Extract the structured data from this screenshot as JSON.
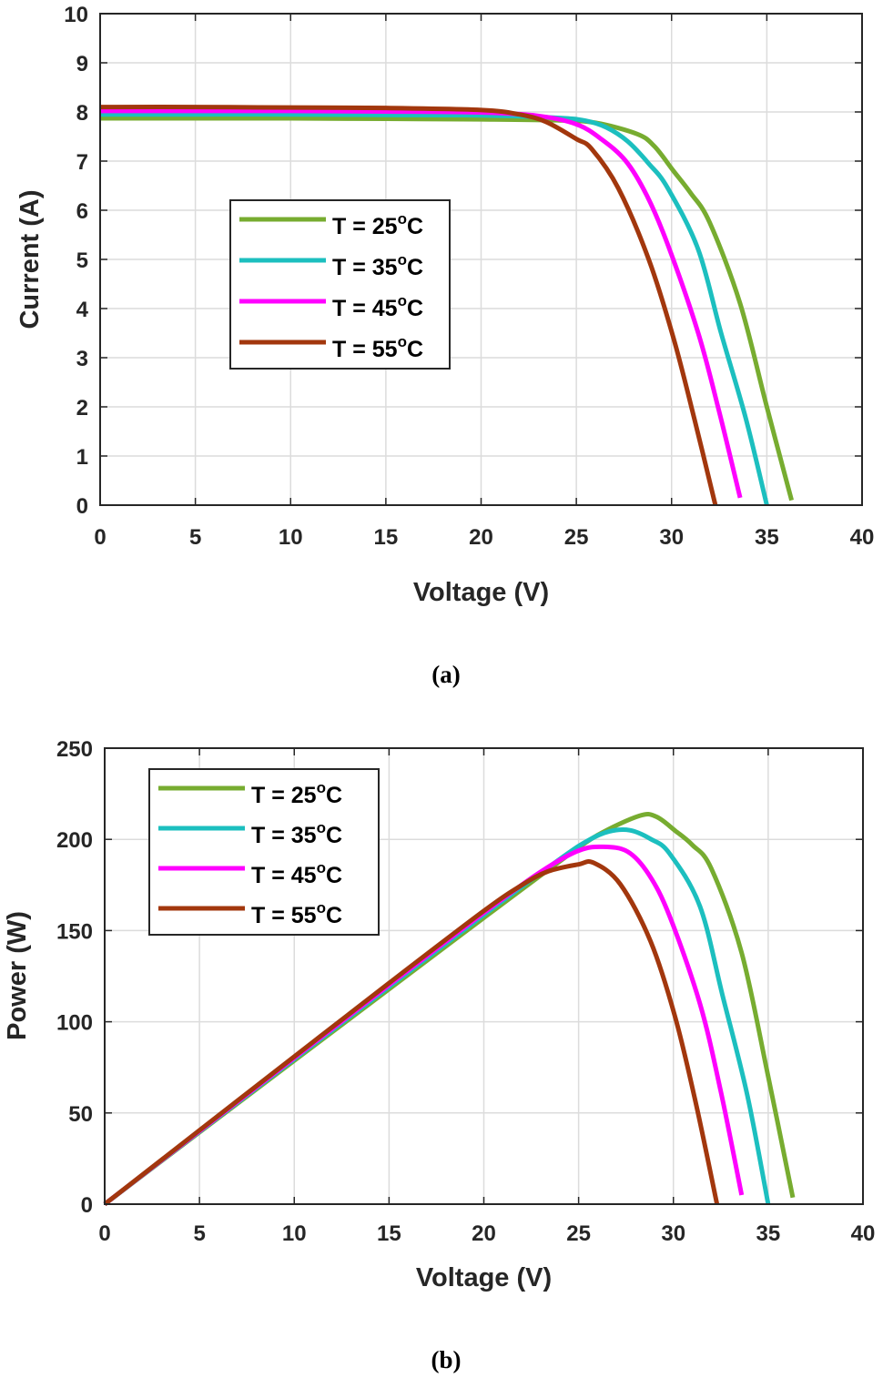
{
  "chart_data": [
    {
      "type": "line",
      "caption": "(a)",
      "xlabel": "Voltage (V)",
      "ylabel": "Current (A)",
      "xlim": [
        0,
        40
      ],
      "ylim": [
        0,
        10
      ],
      "xticks": [
        0,
        5,
        10,
        15,
        20,
        25,
        30,
        35,
        40
      ],
      "yticks": [
        0,
        1,
        2,
        3,
        4,
        5,
        6,
        7,
        8,
        9,
        10
      ],
      "grid": true,
      "legend_placement": "center-left",
      "series": [
        {
          "name": "T = 25oC",
          "label_main": "T = 25",
          "label_sup": "o",
          "label_end": "C",
          "color": "#77AC30",
          "x": [
            0,
            5,
            10,
            15,
            20,
            24,
            26,
            28.2,
            29.1,
            30.1,
            31,
            32,
            33.6,
            35,
            36.3
          ],
          "y": [
            7.87,
            7.87,
            7.87,
            7.86,
            7.85,
            7.83,
            7.78,
            7.55,
            7.3,
            6.8,
            6.35,
            5.75,
            4.1,
            2.0,
            0.1
          ]
        },
        {
          "name": "T = 35oC",
          "label_main": "T = 35",
          "label_sup": "o",
          "label_end": "C",
          "color": "#1CBFBF",
          "x": [
            0,
            5,
            10,
            15,
            20,
            24,
            25.5,
            26.6,
            27.7,
            28.8,
            29.8,
            31.4,
            32.6,
            33.9,
            35.0
          ],
          "y": [
            7.95,
            7.95,
            7.95,
            7.94,
            7.93,
            7.88,
            7.82,
            7.68,
            7.4,
            6.95,
            6.45,
            5.2,
            3.5,
            1.76,
            0
          ]
        },
        {
          "name": "T = 45oC",
          "label_main": "T = 45",
          "label_sup": "o",
          "label_end": "C",
          "color": "#FF00FF",
          "x": [
            0,
            5,
            10,
            15,
            20,
            23,
            25,
            26.3,
            27.6,
            28.7,
            29.8,
            31.4,
            32.5,
            33.6
          ],
          "y": [
            8.02,
            8.02,
            8.02,
            8.01,
            7.99,
            7.92,
            7.75,
            7.45,
            7.0,
            6.3,
            5.3,
            3.5,
            1.9,
            0.15
          ]
        },
        {
          "name": "T = 55oC",
          "label_main": "T = 55",
          "label_sup": "o",
          "label_end": "C",
          "color": "#A2370D",
          "x": [
            0,
            5,
            10,
            15,
            20,
            22,
            23.4,
            25,
            25.8,
            27.2,
            28.8,
            30.1,
            31.2,
            32.3
          ],
          "y": [
            8.1,
            8.1,
            8.09,
            8.08,
            8.04,
            7.95,
            7.8,
            7.45,
            7.25,
            6.45,
            5.0,
            3.4,
            1.75,
            0
          ]
        }
      ]
    },
    {
      "type": "line",
      "caption": "(b)",
      "xlabel": "Voltage (V)",
      "ylabel": "Power (W)",
      "xlim": [
        0,
        40
      ],
      "ylim": [
        0,
        250
      ],
      "xticks": [
        0,
        5,
        10,
        15,
        20,
        25,
        30,
        35,
        40
      ],
      "yticks": [
        0,
        50,
        100,
        150,
        200,
        250
      ],
      "grid": true,
      "legend_placement": "top-left",
      "series": [
        {
          "name": "T = 25oC",
          "label_main": "T = 25",
          "label_sup": "o",
          "label_end": "C",
          "color": "#77AC30",
          "x": [
            0,
            5,
            10,
            15,
            20,
            24,
            26,
            28.2,
            29.1,
            30.1,
            31,
            32,
            33.6,
            35,
            36.3
          ],
          "y": [
            0,
            39.4,
            78.7,
            117.9,
            157,
            187.9,
            202.3,
            212.9,
            212.4,
            204.7,
            196.9,
            184,
            137.8,
            70,
            3.6
          ]
        },
        {
          "name": "T = 35oC",
          "label_main": "T = 35",
          "label_sup": "o",
          "label_end": "C",
          "color": "#1CBFBF",
          "x": [
            0,
            5,
            10,
            15,
            20,
            24,
            25.5,
            26.6,
            27.7,
            28.8,
            29.8,
            31.4,
            32.6,
            33.9,
            35.0
          ],
          "y": [
            0,
            39.8,
            79.5,
            119.1,
            158.6,
            189.1,
            199.4,
            204.3,
            205,
            200.2,
            192.2,
            163.3,
            114.1,
            59.7,
            0
          ]
        },
        {
          "name": "T = 45oC",
          "label_main": "T = 45",
          "label_sup": "o",
          "label_end": "C",
          "color": "#FF00FF",
          "x": [
            0,
            5,
            10,
            15,
            20,
            23,
            25,
            26.3,
            27.6,
            28.7,
            29.8,
            31.4,
            32.5,
            33.6
          ],
          "y": [
            0,
            40.1,
            80.2,
            120.2,
            159.8,
            182.2,
            193.8,
            195.9,
            193.2,
            180.8,
            157.9,
            109.9,
            61.8,
            5.0
          ]
        },
        {
          "name": "T = 55oC",
          "label_main": "T = 55",
          "label_sup": "o",
          "label_end": "C",
          "color": "#A2370D",
          "x": [
            0,
            5,
            10,
            15,
            20,
            22,
            23.4,
            25,
            25.8,
            27.2,
            28.8,
            30.1,
            31.2,
            32.3
          ],
          "y": [
            0,
            40.5,
            80.9,
            121.2,
            160.8,
            174.9,
            182.5,
            186.3,
            187.1,
            175.4,
            144,
            102.3,
            54.6,
            0
          ]
        }
      ]
    }
  ]
}
